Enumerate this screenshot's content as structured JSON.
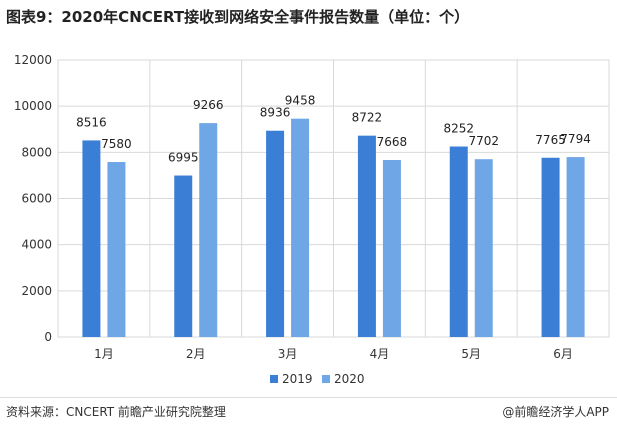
{
  "title": "图表9：2020年CNCERT接收到网络安全事件报告数量（单位：个）",
  "chart_data": {
    "type": "bar",
    "categories": [
      "1月",
      "2月",
      "3月",
      "4月",
      "5月",
      "6月"
    ],
    "series": [
      {
        "name": "2019",
        "values": [
          8516,
          6995,
          8936,
          8722,
          8252,
          7765
        ],
        "color": "#3a7fd5"
      },
      {
        "name": "2020",
        "values": [
          7580,
          9266,
          9458,
          7668,
          7702,
          7794
        ],
        "color": "#6fa6e6"
      }
    ],
    "ylim": [
      0,
      12000
    ],
    "yticks": [
      0,
      2000,
      4000,
      6000,
      8000,
      10000,
      12000
    ],
    "legend_position": "bottom",
    "grid": true
  },
  "footer": {
    "source": "资料来源：CNCERT 前瞻产业研究院整理",
    "brand": "@前瞻经济学人APP"
  }
}
